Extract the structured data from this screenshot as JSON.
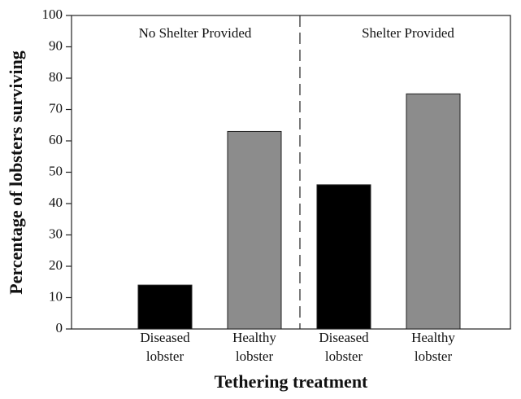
{
  "chart_data": {
    "type": "bar",
    "categories": [
      "Diseased lobster",
      "Healthy lobster",
      "Diseased lobster",
      "Healthy lobster"
    ],
    "values": [
      14,
      63,
      46,
      75
    ],
    "colors": [
      "#000000",
      "#8c8c8c",
      "#000000",
      "#8c8c8c"
    ],
    "ylim": [
      0,
      100
    ],
    "yticks": [
      0,
      10,
      20,
      30,
      40,
      50,
      60,
      70,
      80,
      90,
      100
    ],
    "xlabel": "Tethering treatment",
    "ylabel": "Percentage of lobsters surviving",
    "annotations": [
      "No Shelter Provided",
      "Shelter Provided"
    ],
    "grid": false
  }
}
